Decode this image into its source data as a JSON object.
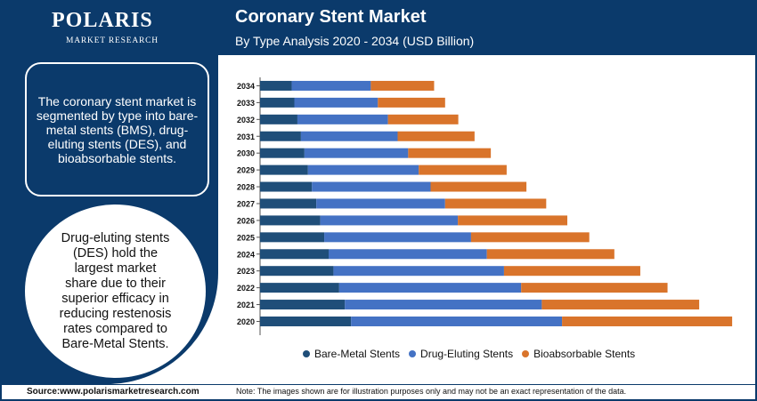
{
  "brand": {
    "name": "POLARIS",
    "subtitle": "MARKET RESEARCH"
  },
  "header": {
    "title": "Coronary Stent Market",
    "subtitle": "By Type Analysis 2020 - 2034 (USD Billion)"
  },
  "sidebar": {
    "summary": "The coronary stent market is segmented by type into bare-metal stents (BMS), drug-eluting stents (DES), and bioabsorbable stents.",
    "highlight": "Drug-eluting stents (DES) hold the largest market share due to their superior efficacy in reducing restenosis rates compared to Bare-Metal Stents."
  },
  "footer": {
    "source": "Source:www.polarismarketresearch.com",
    "note": "Note: The images shown are for illustration purposes only and may not be an exact representation of the data."
  },
  "colors": {
    "bare_metal": "#1f4e79",
    "drug_eluting": "#4472c4",
    "bioabsorbable": "#d9742b"
  },
  "chart_data": {
    "type": "bar",
    "orientation": "horizontal",
    "stacked": true,
    "title": "Coronary Stent Market",
    "subtitle": "By Type Analysis 2020 - 2034 (USD Billion)",
    "categories": [
      "2034",
      "2033",
      "2032",
      "2031",
      "2030",
      "2029",
      "2028",
      "2027",
      "2026",
      "2025",
      "2024",
      "2023",
      "2022",
      "2021",
      "2020"
    ],
    "series": [
      {
        "name": "Bare-Metal Stents",
        "values": [
          0.72,
          0.78,
          0.85,
          0.93,
          1.01,
          1.09,
          1.18,
          1.28,
          1.37,
          1.46,
          1.56,
          1.67,
          1.8,
          1.93,
          2.07
        ]
      },
      {
        "name": "Drug-Eluting Stents",
        "values": [
          1.8,
          1.9,
          2.06,
          2.2,
          2.36,
          2.52,
          2.7,
          2.93,
          3.13,
          3.34,
          3.6,
          3.88,
          4.14,
          4.48,
          4.8
        ]
      },
      {
        "name": "Bioabsorbable Stents",
        "values": [
          1.44,
          1.53,
          1.6,
          1.75,
          1.88,
          2.0,
          2.18,
          2.3,
          2.49,
          2.69,
          2.9,
          3.1,
          3.33,
          3.58,
          3.87
        ]
      }
    ],
    "xlabel": "",
    "ylabel": "",
    "xlim": [
      0,
      10.9
    ],
    "grid": false,
    "legend": [
      "Bare-Metal Stents",
      "Drug-Eluting Stents",
      "Bioabsorbable Stents"
    ],
    "legend_position": "bottom"
  }
}
